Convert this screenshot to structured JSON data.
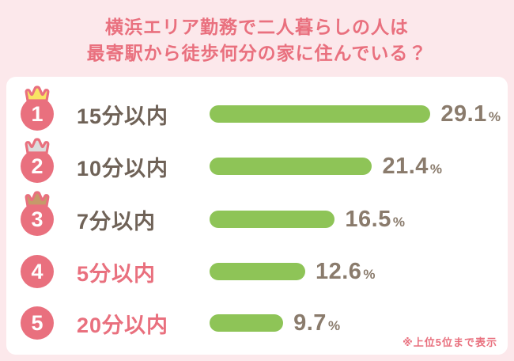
{
  "title": {
    "line1": "横浜エリア勤務で二人暮らしの人は",
    "line2": "最寄駅から徒歩何分の家に住んでいる？"
  },
  "chart_data": {
    "type": "bar",
    "orientation": "horizontal",
    "title": "横浜エリア勤務で二人暮らしの人は最寄駅から徒歩何分の家に住んでいる？",
    "categories": [
      "15分以内",
      "10分以内",
      "7分以内",
      "5分以内",
      "20分以内"
    ],
    "values": [
      29.1,
      21.4,
      16.5,
      12.6,
      9.7
    ],
    "value_labels": [
      "29.1",
      "21.4",
      "16.5",
      "12.6",
      "9.7"
    ],
    "ranks": [
      1,
      2,
      3,
      4,
      5
    ],
    "unit": "%",
    "crowns": [
      "gold",
      "silver",
      "bronze",
      null,
      null
    ],
    "xlim": [
      0,
      30
    ],
    "legend": "off",
    "grid": "off",
    "note": "※上位5位まで表示"
  },
  "colors": {
    "background_pink": "#fce8eb",
    "accent_pink": "#e9707e",
    "bar_green": "#8ec457",
    "label_dark": "#6f6257",
    "value_gray": "#8a7b6c",
    "crown_gold": "#f8e464",
    "crown_silver": "#dcdcdc",
    "crown_bronze": "#c59a6a",
    "panel_white": "#ffffff"
  }
}
